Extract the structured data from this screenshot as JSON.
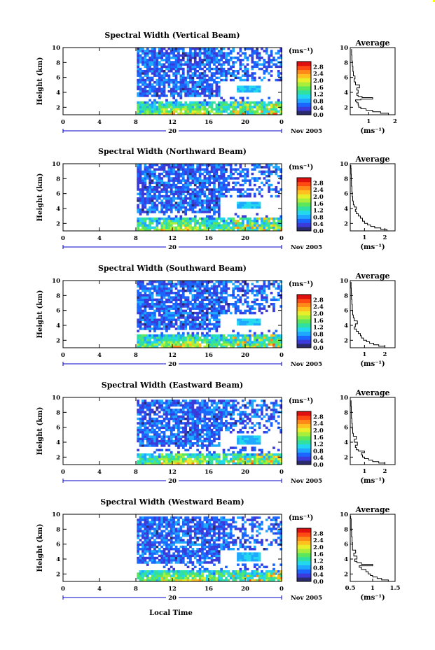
{
  "panels": [
    {
      "title": "Spectral Width (Vertical Beam)",
      "avg_title": "Average",
      "avg_xticks": [
        "1",
        "2"
      ],
      "avg_xticks_values": [
        1,
        2
      ],
      "avg_xlim": [
        0.3,
        2.0
      ],
      "avg_profile": [
        [
          2.0,
          1.0
        ],
        [
          1.75,
          1.2
        ],
        [
          1.45,
          1.4
        ],
        [
          1.15,
          1.6
        ],
        [
          0.9,
          1.8
        ],
        [
          0.7,
          2.0
        ],
        [
          0.62,
          2.3
        ],
        [
          0.6,
          2.6
        ],
        [
          0.55,
          2.8
        ],
        [
          0.5,
          3.0
        ],
        [
          0.7,
          3.1
        ],
        [
          1.15,
          3.3
        ],
        [
          0.75,
          3.45
        ],
        [
          0.6,
          3.6
        ],
        [
          0.55,
          3.9
        ],
        [
          0.6,
          4.3
        ],
        [
          0.55,
          4.6
        ],
        [
          0.65,
          5.0
        ],
        [
          0.5,
          5.4
        ],
        [
          0.45,
          5.8
        ],
        [
          0.48,
          6.2
        ],
        [
          0.42,
          6.8
        ],
        [
          0.4,
          7.5
        ],
        [
          0.38,
          8.2
        ],
        [
          0.36,
          9.0
        ],
        [
          0.35,
          9.8
        ]
      ]
    },
    {
      "title": "Spectral Width (Northward Beam)",
      "avg_title": "Average",
      "avg_xticks": [
        "1",
        "2"
      ],
      "avg_xticks_values": [
        1,
        2
      ],
      "avg_xlim": [
        0.3,
        2.5
      ],
      "avg_profile": [
        [
          2.5,
          1.0
        ],
        [
          2.1,
          1.2
        ],
        [
          1.8,
          1.4
        ],
        [
          1.5,
          1.6
        ],
        [
          1.3,
          1.8
        ],
        [
          1.15,
          2.0
        ],
        [
          1.0,
          2.3
        ],
        [
          0.9,
          2.7
        ],
        [
          0.8,
          3.0
        ],
        [
          0.7,
          3.3
        ],
        [
          0.6,
          3.6
        ],
        [
          0.55,
          3.9
        ],
        [
          0.6,
          4.2
        ],
        [
          0.5,
          4.5
        ],
        [
          0.45,
          5.0
        ],
        [
          0.42,
          5.6
        ],
        [
          0.4,
          6.2
        ],
        [
          0.38,
          7.0
        ],
        [
          0.36,
          7.8
        ],
        [
          0.35,
          8.6
        ],
        [
          0.34,
          9.4
        ],
        [
          0.33,
          9.8
        ]
      ]
    },
    {
      "title": "Spectral Width (Southward Beam)",
      "avg_title": "Average",
      "avg_xticks": [
        "1",
        "2"
      ],
      "avg_xticks_values": [
        1,
        2
      ],
      "avg_xlim": [
        0.3,
        2.5
      ],
      "avg_profile": [
        [
          2.4,
          1.0
        ],
        [
          2.0,
          1.2
        ],
        [
          1.7,
          1.4
        ],
        [
          1.45,
          1.6
        ],
        [
          1.25,
          1.8
        ],
        [
          1.1,
          2.0
        ],
        [
          0.95,
          2.3
        ],
        [
          0.85,
          2.6
        ],
        [
          0.8,
          2.9
        ],
        [
          0.7,
          3.2
        ],
        [
          0.6,
          3.5
        ],
        [
          0.5,
          3.8
        ],
        [
          0.55,
          4.2
        ],
        [
          0.65,
          4.6
        ],
        [
          0.5,
          5.0
        ],
        [
          0.45,
          5.4
        ],
        [
          0.42,
          6.0
        ],
        [
          0.4,
          6.8
        ],
        [
          0.38,
          7.5
        ],
        [
          0.36,
          8.3
        ],
        [
          0.35,
          9.0
        ],
        [
          0.34,
          9.8
        ]
      ]
    },
    {
      "title": "Spectral Width (Eastward Beam)",
      "avg_title": "Average",
      "avg_xticks": [
        "1",
        "2"
      ],
      "avg_xticks_values": [
        1,
        2
      ],
      "avg_xlim": [
        0.3,
        2.5
      ],
      "avg_profile": [
        [
          2.4,
          1.0
        ],
        [
          2.0,
          1.2
        ],
        [
          1.7,
          1.4
        ],
        [
          1.4,
          1.6
        ],
        [
          1.2,
          1.8
        ],
        [
          1.0,
          2.0
        ],
        [
          0.9,
          2.3
        ],
        [
          0.85,
          2.6
        ],
        [
          1.0,
          2.8
        ],
        [
          0.7,
          3.0
        ],
        [
          0.6,
          3.3
        ],
        [
          0.55,
          3.6
        ],
        [
          0.65,
          4.0
        ],
        [
          0.5,
          4.4
        ],
        [
          0.6,
          4.8
        ],
        [
          0.45,
          5.2
        ],
        [
          0.42,
          5.8
        ],
        [
          0.4,
          6.5
        ],
        [
          0.38,
          7.2
        ],
        [
          0.36,
          8.0
        ],
        [
          0.35,
          8.8
        ],
        [
          0.34,
          9.6
        ]
      ]
    },
    {
      "title": "Spectral Width (Westward Beam)",
      "avg_title": "Average",
      "avg_xticks": [
        "0.5",
        "1",
        "1.5"
      ],
      "avg_xticks_values": [
        0.5,
        1.0,
        1.5
      ],
      "avg_xlim": [
        0.5,
        1.5
      ],
      "avg_profile": [
        [
          1.5,
          1.0
        ],
        [
          1.35,
          1.2
        ],
        [
          1.2,
          1.4
        ],
        [
          1.1,
          1.6
        ],
        [
          1.0,
          1.8
        ],
        [
          0.95,
          2.0
        ],
        [
          0.9,
          2.3
        ],
        [
          0.85,
          2.6
        ],
        [
          0.75,
          2.9
        ],
        [
          0.7,
          3.1
        ],
        [
          1.0,
          3.3
        ],
        [
          0.75,
          3.5
        ],
        [
          0.65,
          3.7
        ],
        [
          0.6,
          4.0
        ],
        [
          0.65,
          4.4
        ],
        [
          0.58,
          4.8
        ],
        [
          0.62,
          5.2
        ],
        [
          0.55,
          5.6
        ],
        [
          0.55,
          6.2
        ],
        [
          0.54,
          7.0
        ],
        [
          0.53,
          7.8
        ],
        [
          0.52,
          8.6
        ],
        [
          0.52,
          9.4
        ],
        [
          0.51,
          9.8
        ]
      ]
    }
  ],
  "shared": {
    "yaxis_label": "Height (km)",
    "yticks": [
      "2",
      "4",
      "6",
      "8",
      "10"
    ],
    "yticks_values": [
      2,
      4,
      6,
      8,
      10
    ],
    "ylim": [
      1,
      10
    ],
    "xticks": [
      "0",
      "4",
      "8",
      "12",
      "16",
      "20",
      "0"
    ],
    "xticks_values": [
      0,
      4,
      8,
      12,
      16,
      20,
      24
    ],
    "xlim": [
      0,
      24
    ],
    "date_day": "20",
    "date_label": "Nov 2005",
    "colorbar_unit": "(ms⁻¹)",
    "colorbar_ticks": [
      "0.0",
      "0.4",
      "0.8",
      "1.2",
      "1.6",
      "2.0",
      "2.4",
      "2.8"
    ],
    "colorbar_values": [
      0.0,
      0.4,
      0.8,
      1.2,
      1.6,
      2.0,
      2.4,
      2.8
    ],
    "colorbar_colors": [
      "#2a2a6e",
      "#3b3bd9",
      "#1a66ff",
      "#1fa8ff",
      "#22d7ee",
      "#30e0a0",
      "#5ce65c",
      "#a8ee3a",
      "#e8ee2a",
      "#ffc020",
      "#ff8a1a",
      "#ff4a14",
      "#e0100e"
    ],
    "avg_xlabel": "(ms⁻¹)",
    "bottom_xlabel": "Local Time"
  },
  "chart_data": [
    {
      "type": "heatmap",
      "title": "Spectral Width (Vertical Beam)",
      "xlabel": "",
      "ylabel": "Height (km)",
      "xlim": [
        0,
        24
      ],
      "ylim": [
        1,
        10
      ],
      "zlim": [
        0.0,
        2.8
      ],
      "data_start_hour": 8.1,
      "note_regions": []
    },
    {
      "type": "heatmap",
      "title": "Spectral Width (Northward Beam)",
      "xlabel": "",
      "ylabel": "Height (km)",
      "xlim": [
        0,
        24
      ],
      "ylim": [
        1,
        10
      ],
      "zlim": [
        0.0,
        2.8
      ],
      "data_start_hour": 8.1
    },
    {
      "type": "heatmap",
      "title": "Spectral Width (Southward Beam)",
      "xlabel": "",
      "ylabel": "Height (km)",
      "xlim": [
        0,
        24
      ],
      "ylim": [
        1,
        10
      ],
      "zlim": [
        0.0,
        2.8
      ],
      "data_start_hour": 8.1
    },
    {
      "type": "heatmap",
      "title": "Spectral Width (Eastward Beam)",
      "xlabel": "",
      "ylabel": "Height (km)",
      "xlim": [
        0,
        24
      ],
      "ylim": [
        1,
        10
      ],
      "zlim": [
        0.0,
        2.8
      ],
      "data_start_hour": 8.1
    },
    {
      "type": "heatmap",
      "title": "Spectral Width (Westward Beam)",
      "xlabel": "Local Time",
      "ylabel": "Height (km)",
      "xlim": [
        0,
        24
      ],
      "ylim": [
        1,
        10
      ],
      "zlim": [
        0.0,
        2.8
      ],
      "data_start_hour": 8.1
    },
    {
      "type": "line",
      "title": "Average",
      "xlabel": "(ms⁻¹)",
      "ylabel": "",
      "ylim": [
        1,
        10
      ],
      "series": [
        {
          "values": "see panels[].avg_profile"
        }
      ]
    }
  ]
}
